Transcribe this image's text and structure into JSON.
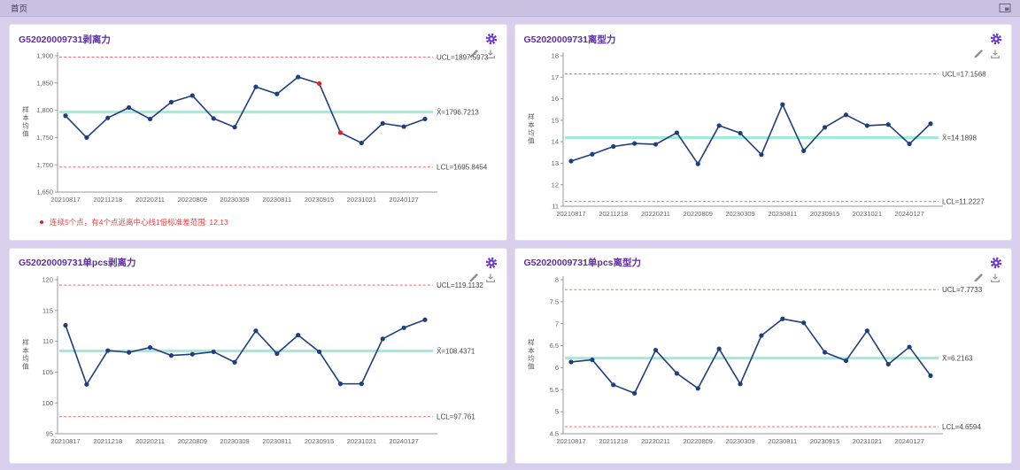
{
  "topbar": {
    "tab": "首页",
    "fullscreen_icon": "restore-window"
  },
  "colors": {
    "series_line": "#1e3f7f",
    "out_point": "#e02222",
    "limit_line": "#f26b6b",
    "center_line": "#8fe8d6",
    "axis": "#999999",
    "tick_text": "#666666",
    "label_text": "#444444",
    "title": "#5b2da8",
    "gear": "#6633cc"
  },
  "charts": [
    {
      "type": "line",
      "title": "G52020009731剥离力",
      "y_axis_label": "样本均值",
      "ylim": [
        1650,
        1900
      ],
      "yticks": [
        {
          "v": 1650,
          "label": "1,650"
        },
        {
          "v": 1700,
          "label": "1,700"
        },
        {
          "v": 1750,
          "label": "1,750"
        },
        {
          "v": 1800,
          "label": "1,800"
        },
        {
          "v": 1850,
          "label": "1,850"
        },
        {
          "v": 1900,
          "label": "1,900"
        }
      ],
      "x_labels": [
        "20210817",
        "20211218",
        "20220211",
        "20220809",
        "20230309",
        "20230811",
        "20230915",
        "20231021",
        "20240127"
      ],
      "x_label_indices": [
        0,
        2,
        4,
        6,
        8,
        10,
        12,
        14,
        16
      ],
      "ucl": {
        "v": 1897.5973,
        "label": "UCL=1897.5973"
      },
      "cl": {
        "v": 1796.7213,
        "label": "X̄=1796.7213"
      },
      "lcl": {
        "v": 1695.8454,
        "label": "LCL=1695.8454"
      },
      "values": [
        1790,
        1750,
        1786,
        1805,
        1784,
        1815,
        1827,
        1785,
        1769,
        1843,
        1830,
        1861,
        1849,
        1759,
        1740,
        1776,
        1770,
        1784
      ],
      "out_indices": [
        12,
        13
      ],
      "alert": "连续5个点，有4个点远离中心线1倍标准差范围: 12,13"
    },
    {
      "type": "line",
      "title": "G52020009731离型力",
      "y_axis_label": "样本均值",
      "ylim": [
        11,
        18
      ],
      "yticks": [
        {
          "v": 11,
          "label": "11"
        },
        {
          "v": 12,
          "label": "12"
        },
        {
          "v": 13,
          "label": "13"
        },
        {
          "v": 14,
          "label": "14"
        },
        {
          "v": 15,
          "label": "15"
        },
        {
          "v": 16,
          "label": "16"
        },
        {
          "v": 17,
          "label": "17"
        },
        {
          "v": 18,
          "label": "18"
        }
      ],
      "x_labels": [
        "20210817",
        "20211218",
        "20220211",
        "20220809",
        "20230309",
        "20230811",
        "20230915",
        "20231021",
        "20240127"
      ],
      "x_label_indices": [
        0,
        2,
        4,
        6,
        8,
        10,
        12,
        14,
        16
      ],
      "ucl": {
        "v": 17.1568,
        "label": "UCL=17.1568"
      },
      "cl": {
        "v": 14.1898,
        "label": "X̄=14.1898"
      },
      "lcl": {
        "v": 11.2227,
        "label": "LCL=11.2227"
      },
      "values": [
        13.1,
        13.42,
        13.78,
        13.92,
        13.88,
        14.42,
        12.97,
        14.75,
        14.4,
        13.4,
        15.73,
        13.58,
        14.67,
        15.25,
        14.75,
        14.8,
        13.9,
        14.84
      ],
      "out_indices": [],
      "alert": ""
    },
    {
      "type": "line",
      "title": "G52020009731单pcs剥离力",
      "y_axis_label": "样本均值",
      "ylim": [
        95,
        120
      ],
      "yticks": [
        {
          "v": 95,
          "label": "95"
        },
        {
          "v": 100,
          "label": "100"
        },
        {
          "v": 105,
          "label": "105"
        },
        {
          "v": 110,
          "label": "110"
        },
        {
          "v": 115,
          "label": "115"
        },
        {
          "v": 120,
          "label": "120"
        }
      ],
      "x_labels": [
        "20210817",
        "20211218",
        "20220211",
        "20220809",
        "20230309",
        "20230811",
        "20230915",
        "20231021",
        "20240127"
      ],
      "x_label_indices": [
        0,
        2,
        4,
        6,
        8,
        10,
        12,
        14,
        16
      ],
      "ucl": {
        "v": 119.1132,
        "label": "UCL=119.1132"
      },
      "cl": {
        "v": 108.4371,
        "label": "X̄=108.4371"
      },
      "lcl": {
        "v": 97.761,
        "label": "LCL=97.761"
      },
      "values": [
        112.6,
        103.0,
        108.5,
        108.2,
        109.0,
        107.7,
        107.9,
        108.3,
        106.6,
        111.7,
        108.0,
        111.0,
        108.3,
        103.1,
        103.1,
        110.4,
        112.2,
        113.5
      ],
      "out_indices": [],
      "alert": ""
    },
    {
      "type": "line",
      "title": "G52020009731单pcs离型力",
      "y_axis_label": "样本均值",
      "ylim": [
        4.5,
        8
      ],
      "yticks": [
        {
          "v": 4.5,
          "label": "4.5"
        },
        {
          "v": 5,
          "label": "5"
        },
        {
          "v": 5.5,
          "label": "5.5"
        },
        {
          "v": 6,
          "label": "6"
        },
        {
          "v": 6.5,
          "label": "6.5"
        },
        {
          "v": 7,
          "label": "7"
        },
        {
          "v": 7.5,
          "label": "7.5"
        },
        {
          "v": 8,
          "label": "8"
        }
      ],
      "x_labels": [
        "20210817",
        "20211218",
        "20220211",
        "20220809",
        "20230309",
        "20230811",
        "20230915",
        "20231021",
        "20240127"
      ],
      "x_label_indices": [
        0,
        2,
        4,
        6,
        8,
        10,
        12,
        14,
        16
      ],
      "ucl": {
        "v": 7.7733,
        "label": "UCL=7.7733"
      },
      "cl": {
        "v": 6.2163,
        "label": "X̄=6.2163"
      },
      "lcl": {
        "v": 4.6594,
        "label": "LCL=4.6594"
      },
      "values": [
        6.13,
        6.18,
        5.61,
        5.42,
        6.4,
        5.87,
        5.53,
        6.43,
        5.63,
        6.73,
        7.11,
        7.02,
        6.35,
        6.16,
        6.84,
        6.08,
        6.47,
        5.82
      ],
      "out_indices": [],
      "alert": ""
    }
  ]
}
